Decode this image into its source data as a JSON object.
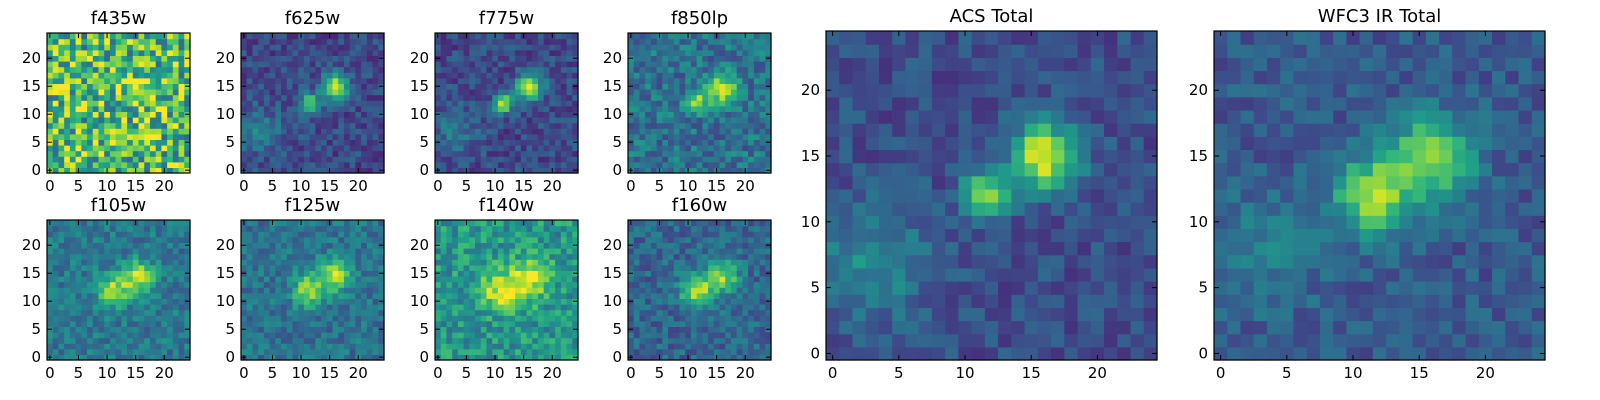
{
  "figure": {
    "colormap": "viridis",
    "colormap_stops": [
      "#440154",
      "#482878",
      "#3e4989",
      "#31688e",
      "#26828e",
      "#1f9e89",
      "#35b779",
      "#6ece58",
      "#b5de2b",
      "#fde725"
    ],
    "frame_color": "#000000",
    "background": "#ffffff"
  },
  "chart_data": [
    {
      "type": "heatmap",
      "title": "f435w",
      "grid": false,
      "xlim": [
        0,
        24
      ],
      "ylim": [
        0,
        24
      ],
      "xticks": [
        0,
        5,
        10,
        15,
        20
      ],
      "yticks": [
        0,
        5,
        10,
        15,
        20
      ],
      "sources": [
        {
          "x": 16,
          "y": 14,
          "amp": 0.25,
          "sigma": 2.2
        }
      ],
      "noise": 0.35,
      "background": 0.68
    },
    {
      "type": "heatmap",
      "title": "f625w",
      "grid": false,
      "xlim": [
        0,
        24
      ],
      "ylim": [
        0,
        24
      ],
      "xticks": [
        0,
        5,
        10,
        15,
        20
      ],
      "yticks": [
        0,
        5,
        10,
        15,
        20
      ],
      "sources": [
        {
          "x": 16,
          "y": 15,
          "amp": 0.75,
          "sigma": 1.6
        },
        {
          "x": 11.5,
          "y": 12,
          "amp": 0.6,
          "sigma": 1.2
        },
        {
          "x": 3,
          "y": 7,
          "amp": 0.2,
          "sigma": 3
        }
      ],
      "noise": 0.12,
      "background": 0.22
    },
    {
      "type": "heatmap",
      "title": "f775w",
      "grid": false,
      "xlim": [
        0,
        24
      ],
      "ylim": [
        0,
        24
      ],
      "xticks": [
        0,
        5,
        10,
        15,
        20
      ],
      "yticks": [
        0,
        5,
        10,
        15,
        20
      ],
      "sources": [
        {
          "x": 16,
          "y": 15,
          "amp": 0.75,
          "sigma": 1.6
        },
        {
          "x": 11.5,
          "y": 12,
          "amp": 0.65,
          "sigma": 1.2
        },
        {
          "x": 3,
          "y": 7,
          "amp": 0.18,
          "sigma": 3
        }
      ],
      "noise": 0.12,
      "background": 0.22
    },
    {
      "type": "heatmap",
      "title": "f850lp",
      "grid": false,
      "xlim": [
        0,
        24
      ],
      "ylim": [
        0,
        24
      ],
      "xticks": [
        0,
        5,
        10,
        15,
        20
      ],
      "yticks": [
        0,
        5,
        10,
        15,
        20
      ],
      "sources": [
        {
          "x": 16,
          "y": 14.5,
          "amp": 0.55,
          "sigma": 1.8
        },
        {
          "x": 11.5,
          "y": 12,
          "amp": 0.5,
          "sigma": 1.3
        }
      ],
      "noise": 0.16,
      "background": 0.38
    },
    {
      "type": "heatmap",
      "title": "f105w",
      "grid": false,
      "xlim": [
        0,
        24
      ],
      "ylim": [
        0,
        24
      ],
      "xticks": [
        0,
        5,
        10,
        15,
        20
      ],
      "yticks": [
        0,
        5,
        10,
        15,
        20
      ],
      "sources": [
        {
          "x": 15.5,
          "y": 14.5,
          "amp": 0.5,
          "sigma": 2
        },
        {
          "x": 11,
          "y": 12,
          "amp": 0.45,
          "sigma": 2
        }
      ],
      "noise": 0.13,
      "background": 0.4
    },
    {
      "type": "heatmap",
      "title": "f125w",
      "grid": false,
      "xlim": [
        0,
        24
      ],
      "ylim": [
        0,
        24
      ],
      "xticks": [
        0,
        5,
        10,
        15,
        20
      ],
      "yticks": [
        0,
        5,
        10,
        15,
        20
      ],
      "sources": [
        {
          "x": 16,
          "y": 15,
          "amp": 0.5,
          "sigma": 2
        },
        {
          "x": 11.5,
          "y": 12,
          "amp": 0.5,
          "sigma": 2
        }
      ],
      "noise": 0.13,
      "background": 0.38
    },
    {
      "type": "heatmap",
      "title": "f140w",
      "grid": false,
      "xlim": [
        0,
        24
      ],
      "ylim": [
        0,
        24
      ],
      "xticks": [
        0,
        5,
        10,
        15,
        20
      ],
      "yticks": [
        0,
        5,
        10,
        15,
        20
      ],
      "sources": [
        {
          "x": 16,
          "y": 14,
          "amp": 0.4,
          "sigma": 2.5
        },
        {
          "x": 11,
          "y": 12,
          "amp": 0.4,
          "sigma": 2.5
        }
      ],
      "noise": 0.17,
      "background": 0.52
    },
    {
      "type": "heatmap",
      "title": "f160w",
      "grid": false,
      "xlim": [
        0,
        24
      ],
      "ylim": [
        0,
        24
      ],
      "xticks": [
        0,
        5,
        10,
        15,
        20
      ],
      "yticks": [
        0,
        5,
        10,
        15,
        20
      ],
      "sources": [
        {
          "x": 16,
          "y": 14.5,
          "amp": 0.5,
          "sigma": 2
        },
        {
          "x": 11.5,
          "y": 12,
          "amp": 0.55,
          "sigma": 2
        }
      ],
      "noise": 0.13,
      "background": 0.33
    },
    {
      "type": "heatmap",
      "title": "ACS Total",
      "grid": false,
      "xlim": [
        0,
        24
      ],
      "ylim": [
        0,
        24
      ],
      "xticks": [
        0,
        5,
        10,
        15,
        20
      ],
      "yticks": [
        0,
        5,
        10,
        15,
        20
      ],
      "sources": [
        {
          "x": 16,
          "y": 15,
          "amp": 0.72,
          "sigma": 1.8
        },
        {
          "x": 11.5,
          "y": 12,
          "amp": 0.6,
          "sigma": 1.2
        },
        {
          "x": 3,
          "y": 7,
          "amp": 0.25,
          "sigma": 3
        }
      ],
      "noise": 0.1,
      "background": 0.24
    },
    {
      "type": "heatmap",
      "title": "WFC3 IR Total",
      "grid": false,
      "xlim": [
        0,
        24
      ],
      "ylim": [
        0,
        24
      ],
      "xticks": [
        0,
        5,
        10,
        15,
        20
      ],
      "yticks": [
        0,
        5,
        10,
        15,
        20
      ],
      "sources": [
        {
          "x": 16,
          "y": 15,
          "amp": 0.58,
          "sigma": 2.1
        },
        {
          "x": 11.5,
          "y": 12,
          "amp": 0.6,
          "sigma": 2
        },
        {
          "x": 3,
          "y": 8,
          "amp": 0.15,
          "sigma": 3
        }
      ],
      "noise": 0.1,
      "background": 0.28
    }
  ]
}
